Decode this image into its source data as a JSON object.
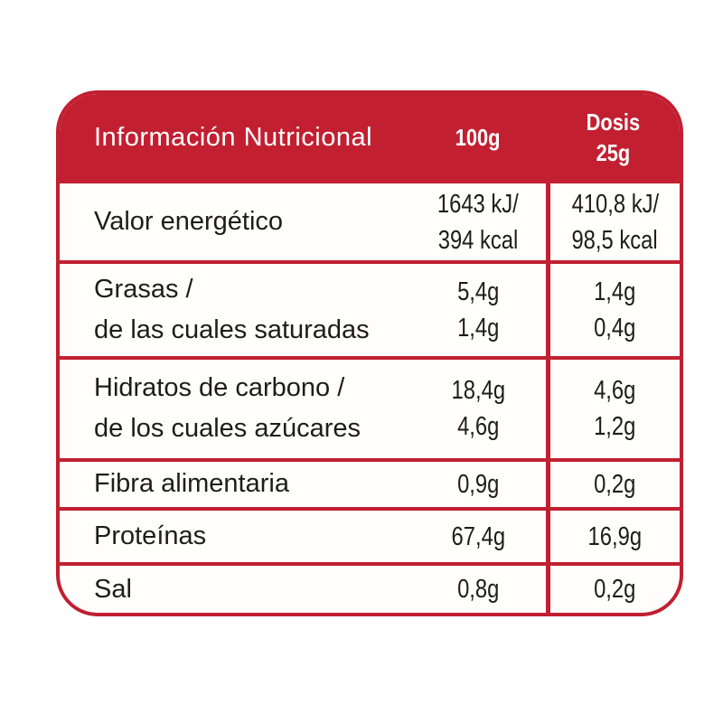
{
  "colors": {
    "brand_red": "#C21F31",
    "text": "#1D1D1B",
    "background": "#FFFFFF"
  },
  "table": {
    "title": "Información Nutricional",
    "columns": {
      "per_100": "100g",
      "dose_line1": "Dosis",
      "dose_line2": "25g"
    },
    "rows": [
      {
        "label_lines": [
          "Valor energético"
        ],
        "per100_lines": [
          "1643 kJ/",
          "394 kcal"
        ],
        "dose_lines": [
          "410,8 kJ/",
          "98,5 kcal"
        ]
      },
      {
        "label_lines": [
          "Grasas /",
          "de las cuales saturadas"
        ],
        "per100_lines": [
          "5,4g",
          "1,4g"
        ],
        "dose_lines": [
          "1,4g",
          "0,4g"
        ]
      },
      {
        "label_lines": [
          "Hidratos de carbono /",
          "de los cuales azúcares"
        ],
        "per100_lines": [
          "18,4g",
          "4,6g"
        ],
        "dose_lines": [
          "4,6g",
          "1,2g"
        ]
      },
      {
        "label_lines": [
          "Fibra alimentaria"
        ],
        "per100_lines": [
          "0,9g"
        ],
        "dose_lines": [
          "0,2g"
        ]
      },
      {
        "label_lines": [
          "Proteínas"
        ],
        "per100_lines": [
          "67,4g"
        ],
        "dose_lines": [
          "16,9g"
        ]
      },
      {
        "label_lines": [
          "Sal"
        ],
        "per100_lines": [
          "0,8g"
        ],
        "dose_lines": [
          "0,2g"
        ]
      }
    ]
  }
}
